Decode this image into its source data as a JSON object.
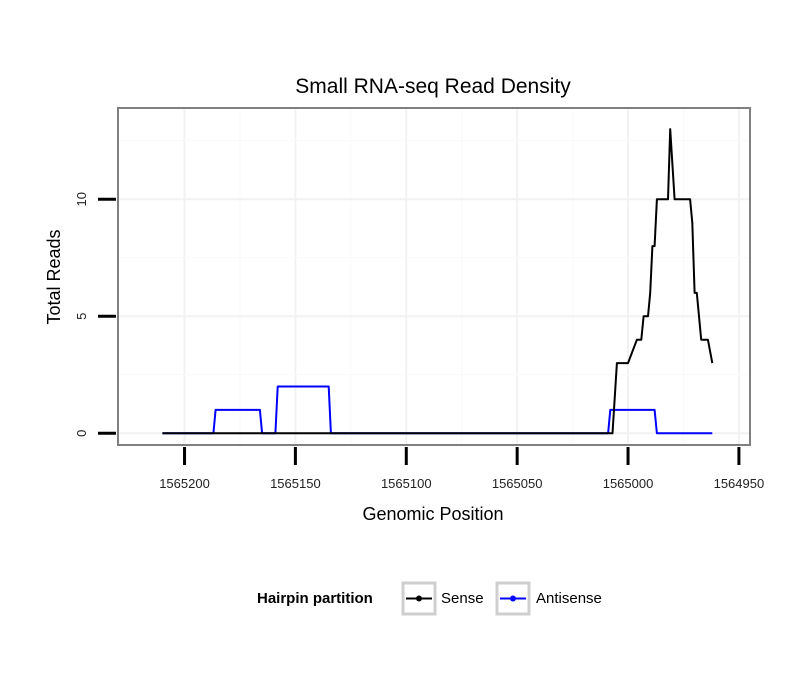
{
  "chart_data": {
    "type": "line",
    "title": "Small RNA-seq Read Density",
    "xlabel": "Genomic Position",
    "ylabel": "Total Reads",
    "xlim": [
      1565230,
      1564945
    ],
    "x_reversed": true,
    "ylim": [
      -0.5,
      13.9
    ],
    "x_ticks": [
      1565200,
      1565150,
      1565100,
      1565050,
      1565000,
      1564950
    ],
    "x_tick_labels": [
      "1565200",
      "1565150",
      "1565100",
      "1565050",
      "1565000",
      "1564950"
    ],
    "y_ticks": [
      0,
      5,
      10
    ],
    "y_tick_labels": [
      "0",
      "5",
      "10"
    ],
    "grid": true,
    "legend": {
      "title": "Hairpin partition",
      "position": "bottom",
      "entries": [
        "Sense",
        "Antisense"
      ]
    },
    "series": [
      {
        "name": "Sense",
        "color": "#000000",
        "x": [
          1565210,
          1565007,
          1565005,
          1565000,
          1564996,
          1564994,
          1564993,
          1564991,
          1564990,
          1564989,
          1564988,
          1564987,
          1564986,
          1564985,
          1564982,
          1564981,
          1564979,
          1564977,
          1564976,
          1564975,
          1564972,
          1564971,
          1564970,
          1564969,
          1564967,
          1564966,
          1564964,
          1564962
        ],
        "values": [
          0,
          0,
          3,
          3,
          4,
          4,
          5,
          5,
          6,
          8,
          8,
          10,
          10,
          10,
          10,
          13,
          10,
          10,
          10,
          10,
          10,
          9,
          6,
          6,
          4,
          4,
          4,
          3
        ]
      },
      {
        "name": "Antisense",
        "color": "#0000ff",
        "x": [
          1565210,
          1565187,
          1565186,
          1565166,
          1565165,
          1565159,
          1565158,
          1565135,
          1565134,
          1565009,
          1565008,
          1564988,
          1564987,
          1564962
        ],
        "values": [
          0,
          0,
          1,
          1,
          0,
          0,
          2,
          2,
          0,
          0,
          1,
          1,
          0,
          0
        ]
      }
    ]
  }
}
